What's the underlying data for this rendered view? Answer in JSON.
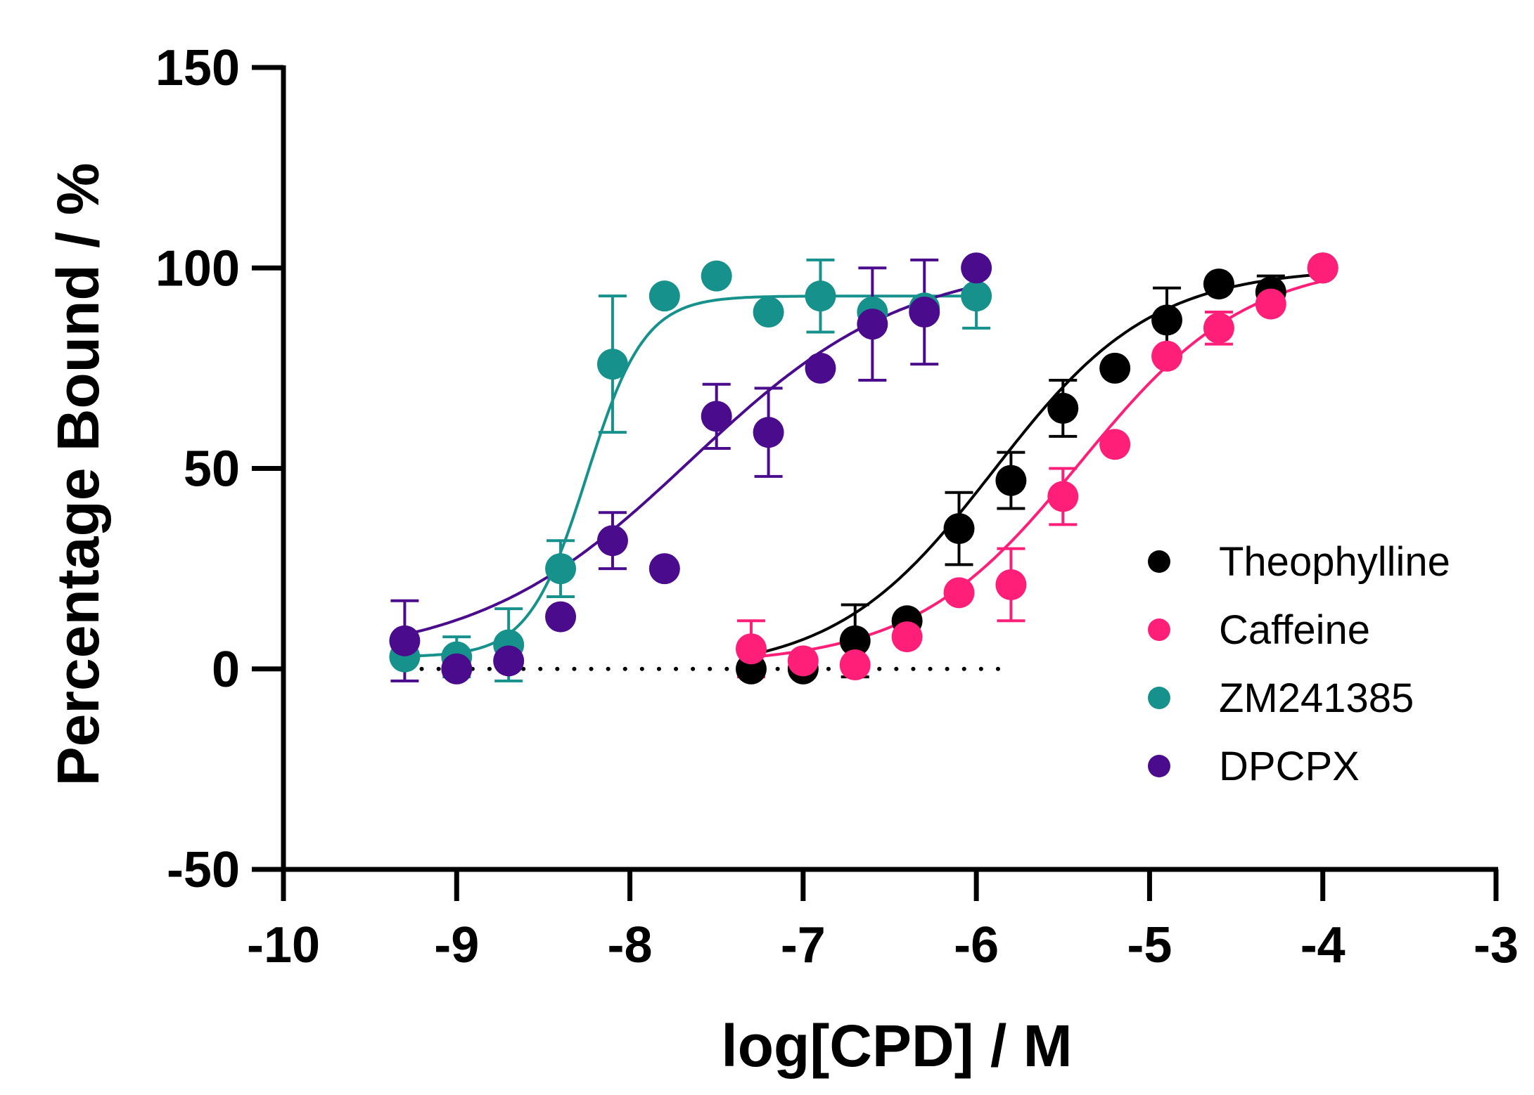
{
  "chart_data": {
    "type": "scatter",
    "title": "",
    "xlabel": "log[CPD] / M",
    "ylabel": "Percentage Bound / %",
    "xlim": [
      -10,
      -3
    ],
    "ylim": [
      -50,
      150
    ],
    "xticks": [
      -10,
      -9,
      -8,
      -7,
      -6,
      -5,
      -4,
      -3
    ],
    "yticks": [
      -50,
      0,
      50,
      100,
      150
    ],
    "xtick_labels": [
      "-10",
      "-9",
      "-8",
      "-7",
      "-6",
      "-5",
      "-4",
      "-3"
    ],
    "ytick_labels": [
      "-50",
      "0",
      "50",
      "100",
      "150"
    ],
    "baseline": {
      "y": 0,
      "x_range": [
        -9.3,
        -5.8
      ],
      "style": "dotted"
    },
    "legend_position": "right",
    "series": [
      {
        "name": "Theophylline",
        "color": "#000000",
        "fit": {
          "bottom": -1,
          "top": 100,
          "logEC50": -5.9,
          "hill": 0.95,
          "x_range": [
            -7.3,
            -4.0
          ]
        },
        "points": [
          {
            "x": -7.3,
            "y": 0,
            "err": 0
          },
          {
            "x": -7.0,
            "y": 0,
            "err": 0
          },
          {
            "x": -6.7,
            "y": 7,
            "err": 9
          },
          {
            "x": -6.4,
            "y": 12,
            "err": 0
          },
          {
            "x": -6.1,
            "y": 35,
            "err": 9
          },
          {
            "x": -5.8,
            "y": 47,
            "err": 7
          },
          {
            "x": -5.5,
            "y": 65,
            "err": 7
          },
          {
            "x": -5.2,
            "y": 75,
            "err": 0
          },
          {
            "x": -4.9,
            "y": 87,
            "err": 8
          },
          {
            "x": -4.6,
            "y": 96,
            "err": 0
          },
          {
            "x": -4.3,
            "y": 94,
            "err": 4
          },
          {
            "x": -4.0,
            "y": 100,
            "err": 0
          }
        ]
      },
      {
        "name": "Caffeine",
        "color": "#ff1f78",
        "fit": {
          "bottom": 1,
          "top": 102,
          "logEC50": -5.4,
          "hill": 0.9,
          "x_range": [
            -7.3,
            -4.0
          ]
        },
        "points": [
          {
            "x": -7.3,
            "y": 5,
            "err": 7
          },
          {
            "x": -7.0,
            "y": 2,
            "err": 0
          },
          {
            "x": -6.7,
            "y": 1,
            "err": 0
          },
          {
            "x": -6.4,
            "y": 8,
            "err": 0
          },
          {
            "x": -6.1,
            "y": 19,
            "err": 0
          },
          {
            "x": -5.8,
            "y": 21,
            "err": 9
          },
          {
            "x": -5.5,
            "y": 43,
            "err": 7
          },
          {
            "x": -5.2,
            "y": 56,
            "err": 0
          },
          {
            "x": -4.9,
            "y": 78,
            "err": 0
          },
          {
            "x": -4.6,
            "y": 85,
            "err": 4
          },
          {
            "x": -4.3,
            "y": 91,
            "err": 0
          },
          {
            "x": -4.0,
            "y": 100,
            "err": 0
          }
        ]
      },
      {
        "name": "ZM241385",
        "color": "#16918b",
        "fit": {
          "bottom": 3,
          "top": 93,
          "logEC50": -8.25,
          "hill": 2.6,
          "x_range": [
            -9.3,
            -6.0
          ]
        },
        "points": [
          {
            "x": -9.3,
            "y": 3,
            "err": 0
          },
          {
            "x": -9.0,
            "y": 3,
            "err": 5
          },
          {
            "x": -8.7,
            "y": 6,
            "err": 9
          },
          {
            "x": -8.4,
            "y": 25,
            "err": 7
          },
          {
            "x": -8.1,
            "y": 76,
            "err": 17
          },
          {
            "x": -7.8,
            "y": 93,
            "err": 0
          },
          {
            "x": -7.5,
            "y": 98,
            "err": 0
          },
          {
            "x": -7.2,
            "y": 89,
            "err": 0
          },
          {
            "x": -6.9,
            "y": 93,
            "err": 9
          },
          {
            "x": -6.6,
            "y": 89,
            "err": 0
          },
          {
            "x": -6.3,
            "y": 90,
            "err": 0
          },
          {
            "x": -6.0,
            "y": 93,
            "err": 8
          }
        ]
      },
      {
        "name": "DPCPX",
        "color": "#4a0b8c",
        "fit": {
          "bottom": 2,
          "top": 102,
          "logEC50": -7.65,
          "hill": 0.7,
          "x_range": [
            -9.3,
            -6.0
          ]
        },
        "points": [
          {
            "x": -9.3,
            "y": 7,
            "err": 10
          },
          {
            "x": -9.0,
            "y": 0,
            "err": 0
          },
          {
            "x": -8.7,
            "y": 2,
            "err": 0
          },
          {
            "x": -8.4,
            "y": 13,
            "err": 0
          },
          {
            "x": -8.1,
            "y": 32,
            "err": 7
          },
          {
            "x": -7.8,
            "y": 25,
            "err": 0
          },
          {
            "x": -7.5,
            "y": 63,
            "err": 8
          },
          {
            "x": -7.2,
            "y": 59,
            "err": 11
          },
          {
            "x": -6.9,
            "y": 75,
            "err": 0
          },
          {
            "x": -6.6,
            "y": 86,
            "err": 14
          },
          {
            "x": -6.3,
            "y": 89,
            "err": 13
          },
          {
            "x": -6.0,
            "y": 100,
            "err": 0
          }
        ]
      }
    ]
  }
}
